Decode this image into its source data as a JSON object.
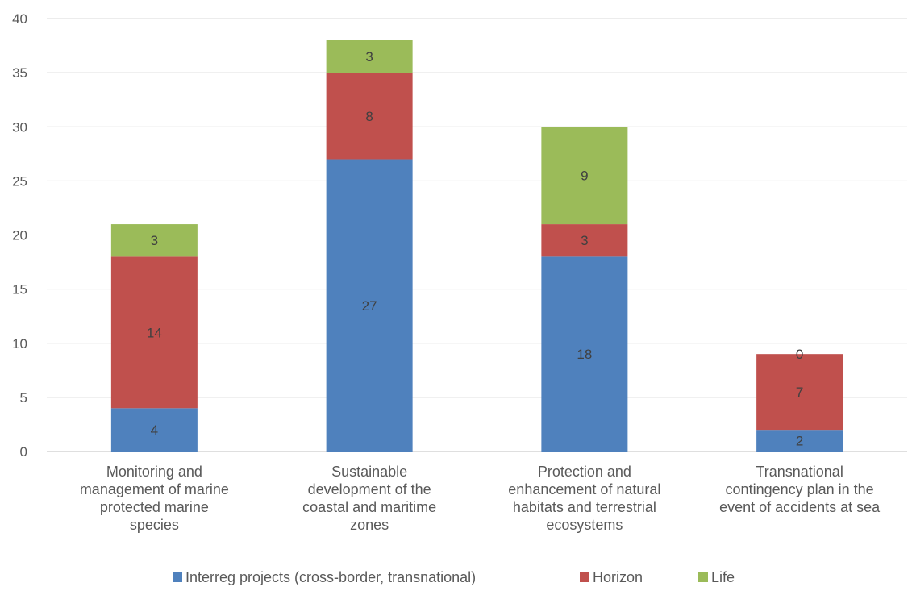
{
  "chart_data": {
    "type": "bar",
    "stacked": true,
    "title": "",
    "xlabel": "",
    "ylabel": "",
    "ylim": [
      0,
      40
    ],
    "y_ticks": [
      0,
      5,
      10,
      15,
      20,
      25,
      30,
      35,
      40
    ],
    "grid": true,
    "legend_position": "bottom",
    "categories": [
      [
        "Monitoring and",
        "management of marine",
        "protected marine",
        "species"
      ],
      [
        "Sustainable",
        "development of the",
        "coastal and maritime",
        "zones"
      ],
      [
        "Protection and",
        "enhancement of natural",
        "habitats and terrestrial",
        "ecosystems"
      ],
      [
        "Transnational",
        "contingency plan in the",
        "event of accidents at sea"
      ]
    ],
    "series": [
      {
        "name": "Interreg projects (cross-border, transnational)",
        "color": "#4F81BD",
        "values": [
          4,
          27,
          18,
          2
        ]
      },
      {
        "name": "Horizon",
        "color": "#C0504D",
        "values": [
          14,
          8,
          3,
          7
        ]
      },
      {
        "name": "Life",
        "color": "#9BBB59",
        "values": [
          3,
          3,
          9,
          0
        ]
      }
    ]
  }
}
